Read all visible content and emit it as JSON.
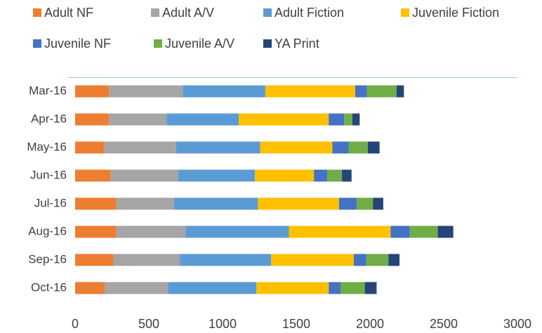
{
  "chart_data": {
    "type": "stacked_bar_horizontal",
    "categories": [
      "Mar-16",
      "Apr-16",
      "May-16",
      "Jun-16",
      "Jul-16",
      "Aug-16",
      "Sep-16",
      "Oct-16"
    ],
    "series": [
      {
        "name": "Adult NF",
        "color": "#ED7D31",
        "values": [
          230,
          230,
          195,
          240,
          280,
          280,
          260,
          200
        ]
      },
      {
        "name": "Adult A/V",
        "color": "#A5A5A5",
        "values": [
          500,
          390,
          490,
          460,
          390,
          470,
          450,
          430
        ]
      },
      {
        "name": "Adult Fiction",
        "color": "#5B9BD5",
        "values": [
          560,
          490,
          570,
          520,
          570,
          700,
          620,
          600
        ]
      },
      {
        "name": "Juvenile Fiction",
        "color": "#FFC000",
        "values": [
          610,
          610,
          490,
          400,
          550,
          690,
          560,
          490
        ]
      },
      {
        "name": "Juvenile NF",
        "color": "#4472C4",
        "values": [
          80,
          105,
          110,
          90,
          120,
          130,
          85,
          80
        ]
      },
      {
        "name": "Juvenile A/V",
        "color": "#70AD47",
        "values": [
          200,
          55,
          130,
          100,
          110,
          190,
          150,
          165
        ]
      },
      {
        "name": "YA Print",
        "color": "#264478",
        "values": [
          50,
          50,
          80,
          65,
          70,
          105,
          75,
          80
        ]
      }
    ],
    "xlim": [
      0,
      3000
    ],
    "xticks": [
      0,
      500,
      1000,
      1500,
      2000,
      2500,
      3000
    ],
    "legend": "top",
    "grid": false
  }
}
